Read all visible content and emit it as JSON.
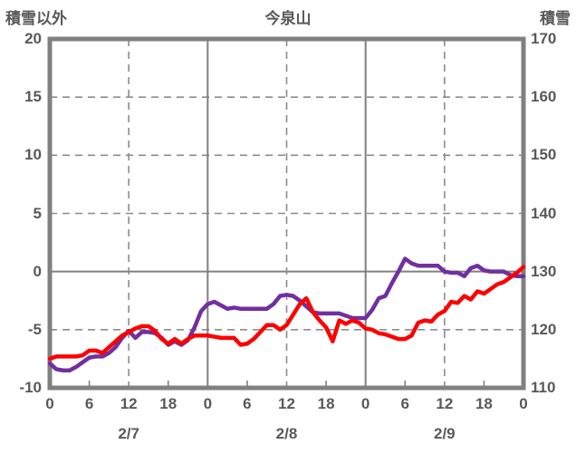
{
  "header": {
    "left_axis_title": "積雪以外",
    "chart_title": "今泉山",
    "right_axis_title": "積雪"
  },
  "chart_data": {
    "type": "line",
    "title": "今泉山",
    "left_axis": {
      "title": "積雪以外",
      "ticks": [
        20,
        15,
        10,
        5,
        0,
        -5,
        -10
      ],
      "range": [
        -10,
        20
      ],
      "zero_line": "solid",
      "gridlines": "dashed"
    },
    "right_axis": {
      "title": "積雪",
      "ticks": [
        170,
        160,
        150,
        140,
        130,
        120,
        110
      ],
      "range": [
        110,
        170
      ],
      "mapping": "right_value = 130 + 2 * left_value"
    },
    "x_axis": {
      "unit": "hours",
      "total_hours": 72,
      "tick_interval_hours": 6,
      "tick_labels": [
        "0",
        "6",
        "12",
        "18",
        "0",
        "6",
        "12",
        "18",
        "0",
        "6",
        "12",
        "18",
        "0"
      ],
      "date_labels": [
        "2/7",
        "2/8",
        "2/9"
      ],
      "solid_gridlines_at_hours": [
        24,
        48
      ],
      "dashed_gridlines_at_hours": [
        12,
        36,
        60
      ]
    },
    "sample_interval_hours": 1,
    "series": [
      {
        "name": "purple-line",
        "color": "#7030A0",
        "axis_hint": "積雪 (right axis, right = 130 + 2 × plotted value)",
        "values": [
          -7.9,
          -8.4,
          -8.5,
          -8.5,
          -8.2,
          -7.8,
          -7.4,
          -7.3,
          -7.3,
          -7.0,
          -6.5,
          -5.7,
          -5.1,
          -5.7,
          -5.2,
          -5.2,
          -5.3,
          -5.7,
          -6.3,
          -6.0,
          -6.3,
          -5.9,
          -4.8,
          -3.4,
          -2.8,
          -2.6,
          -2.9,
          -3.2,
          -3.1,
          -3.2,
          -3.2,
          -3.2,
          -3.2,
          -3.2,
          -2.8,
          -2.1,
          -2.0,
          -2.1,
          -2.5,
          -3.0,
          -3.5,
          -3.6,
          -3.6,
          -3.6,
          -3.6,
          -3.8,
          -4.0,
          -4.0,
          -4.0,
          -3.3,
          -2.3,
          -2.1,
          -1.0,
          0.0,
          1.1,
          0.7,
          0.5,
          0.5,
          0.5,
          0.5,
          0.0,
          -0.1,
          -0.1,
          -0.4,
          0.3,
          0.5,
          0.1,
          0.0,
          0.0,
          0.0,
          -0.3,
          -0.4,
          -0.4
        ]
      },
      {
        "name": "red-line",
        "color": "#FF0000",
        "axis_hint": "積雪以外 (left axis)",
        "values": [
          -7.5,
          -7.3,
          -7.3,
          -7.3,
          -7.3,
          -7.2,
          -6.8,
          -6.8,
          -7.0,
          -6.5,
          -6.0,
          -5.5,
          -5.2,
          -4.9,
          -4.7,
          -4.7,
          -5.1,
          -5.8,
          -6.2,
          -5.8,
          -6.2,
          -5.8,
          -5.5,
          -5.5,
          -5.5,
          -5.6,
          -5.7,
          -5.7,
          -5.7,
          -6.3,
          -6.2,
          -5.8,
          -5.2,
          -4.6,
          -4.6,
          -5.0,
          -4.6,
          -3.7,
          -2.8,
          -2.3,
          -3.5,
          -4.2,
          -4.8,
          -6.0,
          -4.2,
          -4.5,
          -4.2,
          -4.4,
          -4.9,
          -5.0,
          -5.3,
          -5.4,
          -5.6,
          -5.8,
          -5.8,
          -5.5,
          -4.4,
          -4.2,
          -4.3,
          -3.7,
          -3.4,
          -2.6,
          -2.7,
          -2.1,
          -2.4,
          -1.7,
          -1.9,
          -1.5,
          -1.1,
          -0.9,
          -0.5,
          -0.1,
          0.4
        ]
      }
    ],
    "styles": {
      "border_color": "#808080",
      "gridline_color": "#8c8c8c",
      "text_color": "#595959",
      "background": "#ffffff"
    }
  }
}
